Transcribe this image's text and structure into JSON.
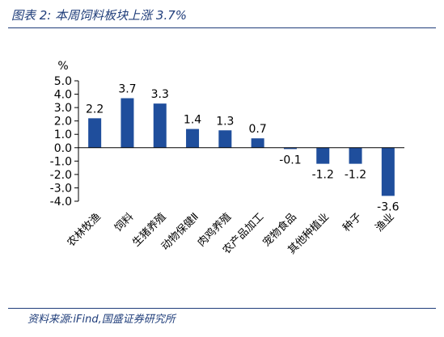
{
  "figure": {
    "title": "图表 2:  本周饲料板块上涨 3.7%",
    "source": "资料来源:iFind,国盛证券研究所"
  },
  "colors": {
    "bar": "#1f4e9c",
    "accent": "#1f3d7a",
    "axis": "#000000"
  },
  "chart_data": {
    "type": "bar",
    "categories": [
      "农林牧渔",
      "饲料",
      "生猪养殖",
      "动物保健Ⅱ",
      "肉鸡养殖",
      "农产品加工",
      "宠物食品",
      "其他种植业",
      "种子",
      "渔业"
    ],
    "values": [
      2.2,
      3.7,
      3.3,
      1.4,
      1.3,
      0.7,
      -0.1,
      -1.2,
      -1.2,
      -3.6
    ],
    "value_labels": [
      "2.2",
      "3.7",
      "3.3",
      "1.4",
      "1.3",
      "0.7",
      "-0.1",
      "-1.2",
      "-1.2",
      "-3.6"
    ],
    "ylabel": "%",
    "ylim": [
      -4.0,
      5.0
    ],
    "yticks": [
      5.0,
      4.0,
      3.0,
      2.0,
      1.0,
      0.0,
      -1.0,
      -2.0,
      -3.0,
      -4.0
    ],
    "ytick_labels": [
      "5.0",
      "4.0",
      "3.0",
      "2.0",
      "1.0",
      "0.0",
      "-1.0",
      "-2.0",
      "-3.0",
      "-4.0"
    ],
    "grid": false,
    "legend": "none"
  }
}
